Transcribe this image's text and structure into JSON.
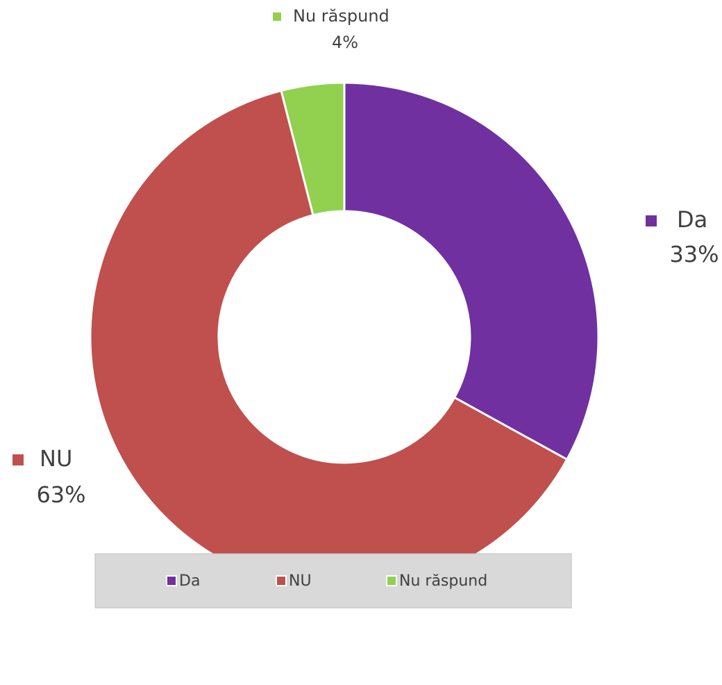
{
  "chart_data": {
    "type": "donut",
    "categories": [
      "Da",
      "NU",
      "Nu răspund"
    ],
    "values": [
      33,
      63,
      4
    ],
    "value_labels": [
      "33%",
      "63%",
      "4%"
    ],
    "colors": [
      "#7030a0",
      "#c0504d",
      "#92d050"
    ],
    "legend": "bottom"
  }
}
